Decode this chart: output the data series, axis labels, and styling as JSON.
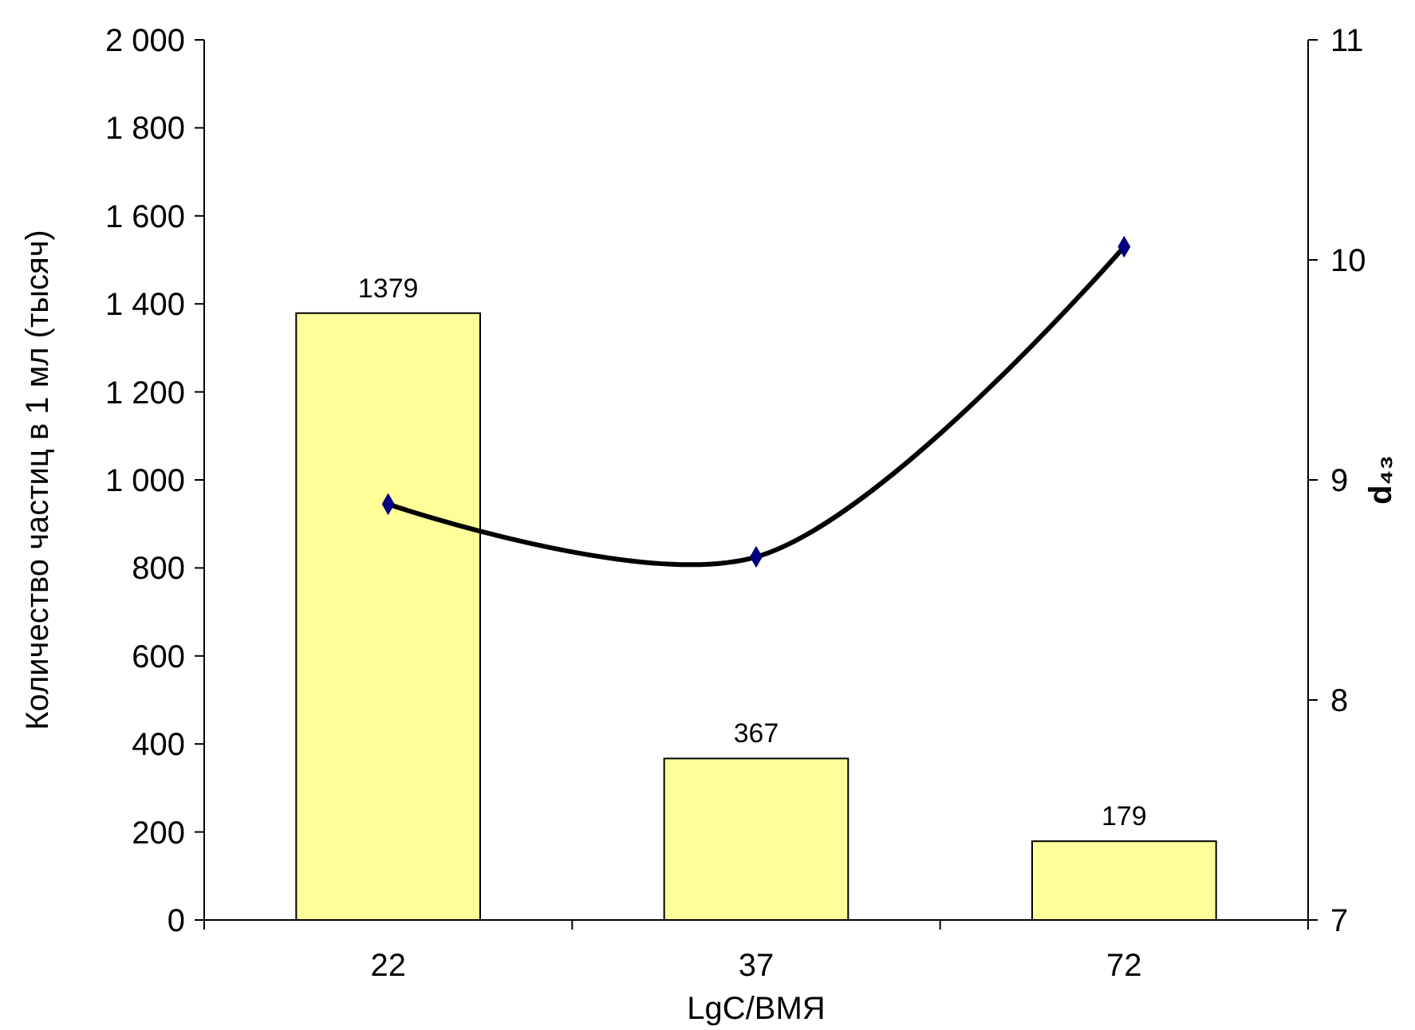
{
  "chart_data": {
    "type": "bar",
    "xlabel": "LgC/ВМЯ",
    "ylabel": "Количество частиц в 1 мл (тысяч)",
    "y2label": "d₄₃",
    "categories": [
      "22",
      "37",
      "72"
    ],
    "series": [
      {
        "color": "#ffff99",
        "values": [
          1379,
          367,
          179
        ],
        "value_labels": [
          "1379",
          "367",
          "179"
        ]
      },
      {
        "type": "line",
        "axis": "y2",
        "color": "#000000",
        "values": [
          8.89,
          8.65,
          10.06
        ],
        "marker": "diamond"
      }
    ],
    "ylim": [
      0,
      2000
    ],
    "yticks": [
      {
        "value": 0,
        "label": "0"
      },
      {
        "value": 200,
        "label": "200"
      },
      {
        "value": 400,
        "label": "400"
      },
      {
        "value": 600,
        "label": "600"
      },
      {
        "value": 800,
        "label": "800"
      },
      {
        "value": 1000,
        "label": "1 000"
      },
      {
        "value": 1200,
        "label": "1 200"
      },
      {
        "value": 1400,
        "label": "1 400"
      },
      {
        "value": 1600,
        "label": "1 600"
      },
      {
        "value": 1800,
        "label": "1 800"
      },
      {
        "value": 2000,
        "label": "2 000"
      }
    ],
    "y2lim": [
      7,
      11
    ],
    "y2ticks": [
      7,
      8,
      9,
      10,
      11
    ]
  }
}
